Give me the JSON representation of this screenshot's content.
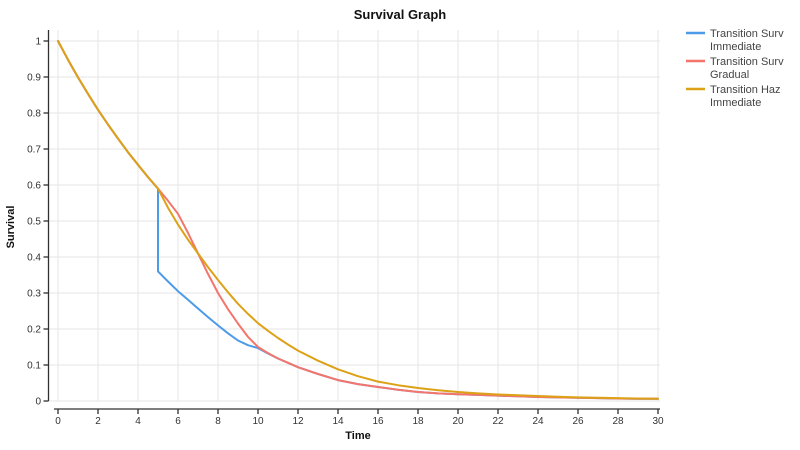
{
  "title": "Survival Graph",
  "colors": {
    "grid": "#e5e5e5",
    "axis": "#303030",
    "tick_label": "#333333",
    "blue": "#4c9be8",
    "red": "#f3756c",
    "gold": "#dda117"
  },
  "chart_data": {
    "type": "line",
    "title": "Survival Graph",
    "xlabel": "Time",
    "ylabel": "Survival",
    "xlim": [
      0,
      30
    ],
    "ylim": [
      0,
      1
    ],
    "x_ticks": [
      0,
      2,
      4,
      6,
      8,
      10,
      12,
      14,
      16,
      18,
      20,
      22,
      24,
      26,
      28,
      30
    ],
    "x_tick_labels": [
      "0",
      "2",
      "4",
      "6",
      "8",
      "10",
      "12",
      "14",
      "16",
      "18",
      "20",
      "22",
      "24",
      "26",
      "28",
      "30"
    ],
    "y_ticks": [
      0,
      0.1,
      0.2,
      0.3,
      0.4,
      0.5,
      0.6,
      0.7,
      0.8,
      0.9,
      1
    ],
    "y_tick_labels": [
      "0",
      "0.1",
      "0.2",
      "0.3",
      "0.4",
      "0.5",
      "0.6",
      "0.7",
      "0.8",
      "0.9",
      "1"
    ],
    "grid": true,
    "legend_position": "right",
    "series": [
      {
        "name": "Transition Surv Immediate",
        "label_lines": [
          "Transition Surv",
          "Immediate"
        ],
        "color": "#4c9be8",
        "points": [
          [
            0,
            1.0
          ],
          [
            0.5,
            0.948
          ],
          [
            1,
            0.899
          ],
          [
            1.5,
            0.853
          ],
          [
            2,
            0.809
          ],
          [
            2.5,
            0.768
          ],
          [
            3,
            0.729
          ],
          [
            3.5,
            0.691
          ],
          [
            4,
            0.656
          ],
          [
            4.5,
            0.622
          ],
          [
            5,
            0.59
          ],
          [
            5,
            0.36
          ],
          [
            5.5,
            0.332
          ],
          [
            6,
            0.305
          ],
          [
            6.5,
            0.281
          ],
          [
            7,
            0.257
          ],
          [
            7.5,
            0.233
          ],
          [
            8,
            0.21
          ],
          [
            8.5,
            0.188
          ],
          [
            9,
            0.168
          ],
          [
            9.5,
            0.155
          ],
          [
            10,
            0.147
          ],
          [
            10.5,
            0.132
          ],
          [
            11,
            0.118
          ],
          [
            11.5,
            0.106
          ],
          [
            12,
            0.094
          ],
          [
            13,
            0.075
          ],
          [
            14,
            0.058
          ],
          [
            15,
            0.047
          ],
          [
            16,
            0.039
          ],
          [
            17,
            0.031
          ],
          [
            18,
            0.025
          ],
          [
            19,
            0.021
          ],
          [
            20,
            0.019
          ],
          [
            21,
            0.017
          ],
          [
            22,
            0.015
          ],
          [
            23,
            0.013
          ],
          [
            24,
            0.011
          ],
          [
            25,
            0.01
          ],
          [
            26,
            0.009
          ],
          [
            27,
            0.008
          ],
          [
            28,
            0.007
          ],
          [
            29,
            0.006
          ],
          [
            30,
            0.006
          ]
        ]
      },
      {
        "name": "Transition Surv Gradual",
        "label_lines": [
          "Transition Surv",
          "Gradual"
        ],
        "color": "#f3756c",
        "points": [
          [
            0,
            1.0
          ],
          [
            0.5,
            0.948
          ],
          [
            1,
            0.899
          ],
          [
            1.5,
            0.853
          ],
          [
            2,
            0.809
          ],
          [
            2.5,
            0.768
          ],
          [
            3,
            0.729
          ],
          [
            3.5,
            0.691
          ],
          [
            4,
            0.656
          ],
          [
            4.5,
            0.622
          ],
          [
            5,
            0.59
          ],
          [
            5.5,
            0.556
          ],
          [
            6,
            0.52
          ],
          [
            6.5,
            0.467
          ],
          [
            7,
            0.41
          ],
          [
            7.5,
            0.353
          ],
          [
            8,
            0.3
          ],
          [
            8.5,
            0.255
          ],
          [
            9,
            0.215
          ],
          [
            9.5,
            0.178
          ],
          [
            10,
            0.15
          ],
          [
            10.5,
            0.133
          ],
          [
            11,
            0.118
          ],
          [
            11.5,
            0.106
          ],
          [
            12,
            0.094
          ],
          [
            13,
            0.075
          ],
          [
            14,
            0.058
          ],
          [
            15,
            0.047
          ],
          [
            16,
            0.039
          ],
          [
            17,
            0.031
          ],
          [
            18,
            0.025
          ],
          [
            19,
            0.021
          ],
          [
            20,
            0.019
          ],
          [
            21,
            0.017
          ],
          [
            22,
            0.015
          ],
          [
            23,
            0.013
          ],
          [
            24,
            0.011
          ],
          [
            25,
            0.01
          ],
          [
            26,
            0.009
          ],
          [
            27,
            0.008
          ],
          [
            28,
            0.007
          ],
          [
            29,
            0.006
          ],
          [
            30,
            0.006
          ]
        ]
      },
      {
        "name": "Transition Haz Immediate",
        "label_lines": [
          "Transition Haz",
          "Immediate"
        ],
        "color": "#dda117",
        "points": [
          [
            0,
            1.0
          ],
          [
            0.5,
            0.948
          ],
          [
            1,
            0.899
          ],
          [
            1.5,
            0.853
          ],
          [
            2,
            0.809
          ],
          [
            2.5,
            0.768
          ],
          [
            3,
            0.729
          ],
          [
            3.5,
            0.691
          ],
          [
            4,
            0.656
          ],
          [
            4.5,
            0.622
          ],
          [
            5,
            0.59
          ],
          [
            5.5,
            0.537
          ],
          [
            6,
            0.49
          ],
          [
            6.5,
            0.448
          ],
          [
            7,
            0.41
          ],
          [
            7.5,
            0.372
          ],
          [
            8,
            0.336
          ],
          [
            8.5,
            0.302
          ],
          [
            9,
            0.27
          ],
          [
            9.5,
            0.242
          ],
          [
            10,
            0.216
          ],
          [
            10.5,
            0.195
          ],
          [
            11,
            0.175
          ],
          [
            11.5,
            0.157
          ],
          [
            12,
            0.14
          ],
          [
            13,
            0.112
          ],
          [
            14,
            0.088
          ],
          [
            15,
            0.069
          ],
          [
            16,
            0.054
          ],
          [
            17,
            0.044
          ],
          [
            18,
            0.036
          ],
          [
            19,
            0.03
          ],
          [
            20,
            0.025
          ],
          [
            21,
            0.021
          ],
          [
            22,
            0.018
          ],
          [
            23,
            0.016
          ],
          [
            24,
            0.014
          ],
          [
            25,
            0.012
          ],
          [
            26,
            0.01
          ],
          [
            27,
            0.009
          ],
          [
            28,
            0.008
          ],
          [
            29,
            0.007
          ],
          [
            30,
            0.006
          ]
        ]
      }
    ]
  }
}
